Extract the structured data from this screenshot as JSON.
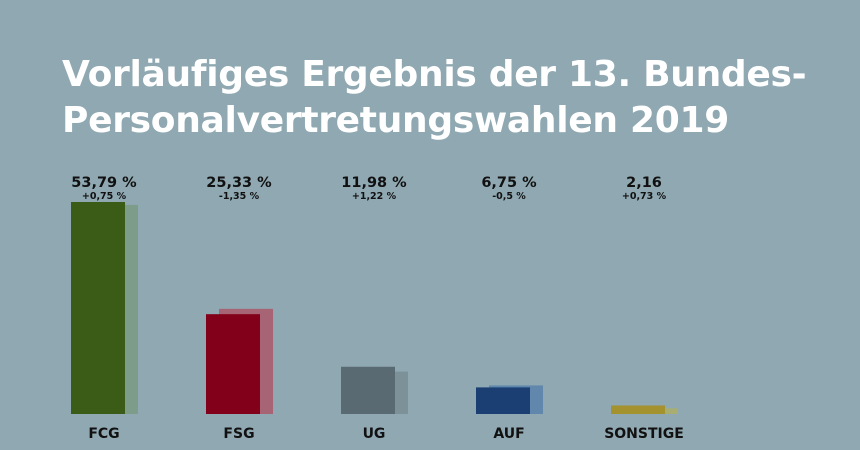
{
  "chart_data": {
    "type": "bar",
    "title_lines": [
      "Vorläufiges Ergebnis der 13. Bundes-",
      "Personalvertretungswahlen 2019"
    ],
    "categories": [
      "FCG",
      "FSG",
      "UG",
      "AUF",
      "SONSTIGE"
    ],
    "values": [
      53.79,
      25.33,
      11.98,
      6.75,
      2.16
    ],
    "value_labels": [
      "53,79 %",
      "25,33 %",
      "11,98 %",
      "6,75 %",
      "2,16"
    ],
    "previous_values": [
      53.04,
      26.68,
      10.76,
      7.25,
      1.43
    ],
    "change_labels": [
      "+0,75 %",
      "-1,35 %",
      "+1,22 %",
      "-0,5 %",
      "+0,73 %"
    ],
    "colors": [
      "#3b5c16",
      "#82001a",
      "#5a6a72",
      "#1b3f72",
      "#a3922d"
    ],
    "previous_colors": [
      "#7e9c8a",
      "#a66474",
      "#7d9199",
      "#6287ac",
      "#a8ae72"
    ],
    "ylim": [
      0,
      53.79
    ]
  }
}
